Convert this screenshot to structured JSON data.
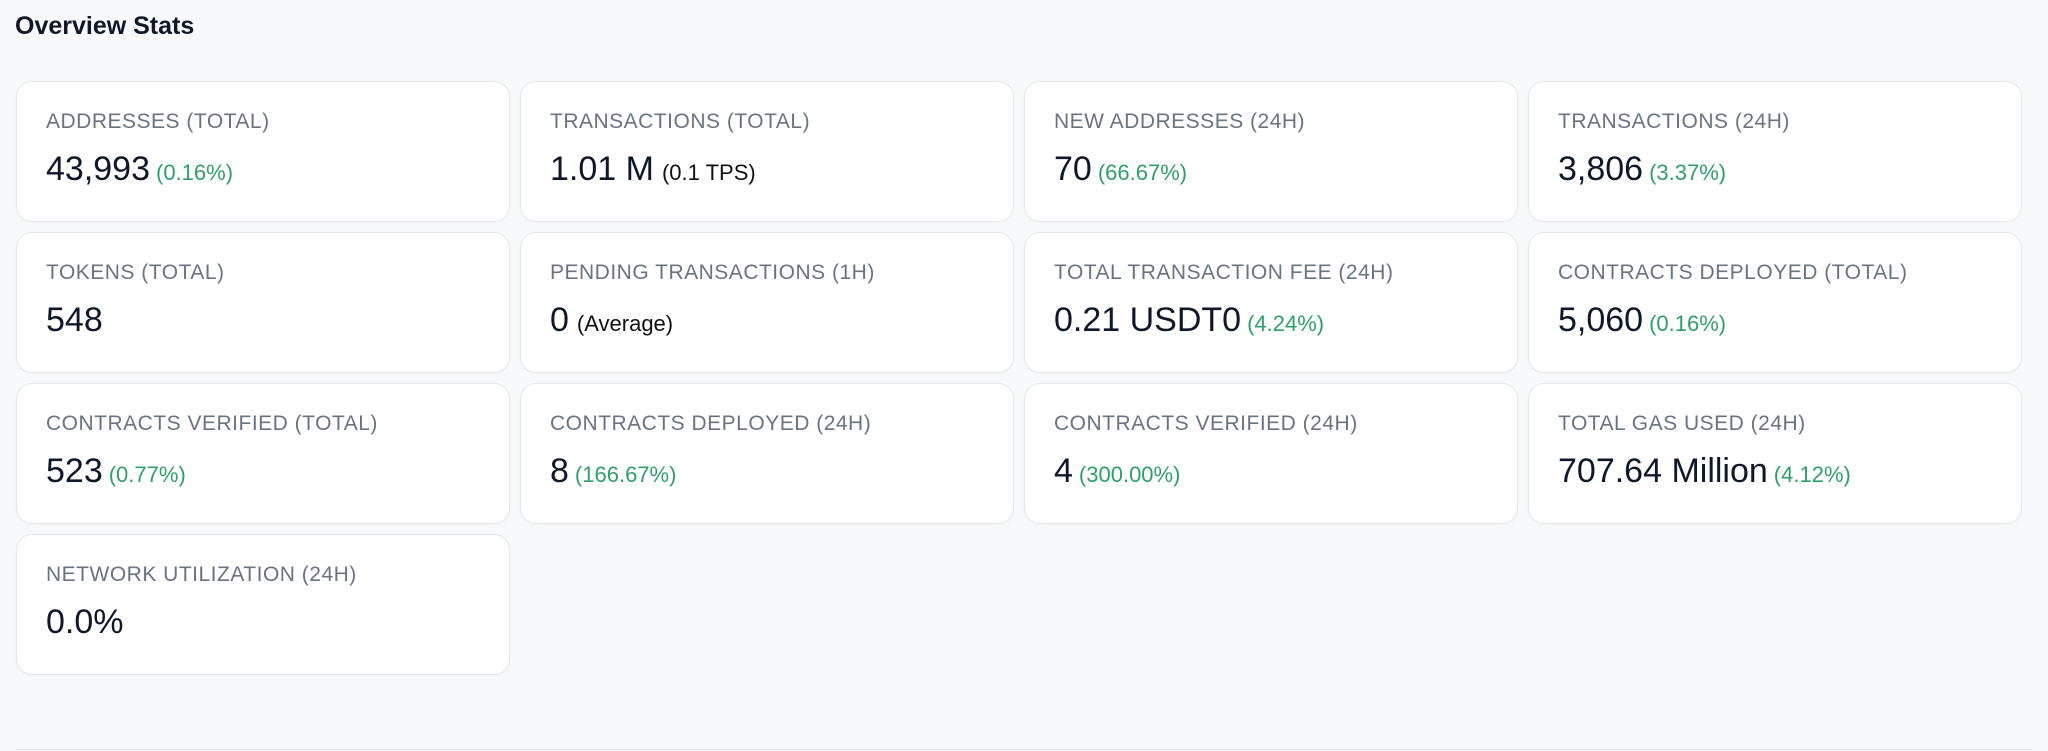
{
  "title": "Overview Stats",
  "cards": [
    {
      "label": "ADDRESSES (TOTAL)",
      "value": "43,993",
      "change": "(0.16%)"
    },
    {
      "label": "TRANSACTIONS (TOTAL)",
      "value": "1.01 M",
      "note": "(0.1 TPS)"
    },
    {
      "label": "NEW ADDRESSES (24H)",
      "value": "70",
      "change": "(66.67%)"
    },
    {
      "label": "TRANSACTIONS (24H)",
      "value": "3,806",
      "change": "(3.37%)"
    },
    {
      "label": "TOKENS (TOTAL)",
      "value": "548"
    },
    {
      "label": "PENDING TRANSACTIONS (1H)",
      "value": "0",
      "note": "(Average)"
    },
    {
      "label": "TOTAL TRANSACTION FEE (24H)",
      "value": "0.21 USDT0",
      "change": "(4.24%)"
    },
    {
      "label": "CONTRACTS DEPLOYED (TOTAL)",
      "value": "5,060",
      "change": "(0.16%)"
    },
    {
      "label": "CONTRACTS VERIFIED (TOTAL)",
      "value": "523",
      "change": "(0.77%)"
    },
    {
      "label": "CONTRACTS DEPLOYED (24H)",
      "value": "8",
      "change": "(166.67%)"
    },
    {
      "label": "CONTRACTS VERIFIED (24H)",
      "value": "4",
      "change": "(300.00%)"
    },
    {
      "label": "TOTAL GAS USED (24H)",
      "value": "707.64 Million",
      "change": "(4.12%)"
    },
    {
      "label": "NETWORK UTILIZATION (24H)",
      "value": "0.0%"
    }
  ]
}
